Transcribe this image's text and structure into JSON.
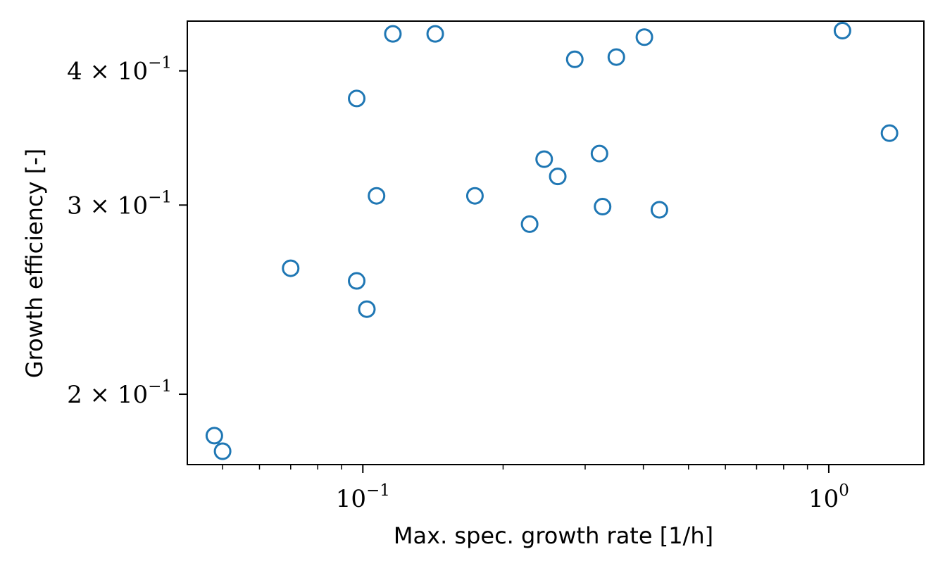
{
  "chart_data": {
    "type": "scatter",
    "title": "",
    "xlabel": "Max. spec. growth rate [1/h]",
    "ylabel": "Growth efficiency [-]",
    "x_scale": "log",
    "y_scale": "log",
    "xlim": [
      0.042,
      1.6
    ],
    "ylim": [
      0.172,
      0.445
    ],
    "x_ticks": [
      {
        "value": 0.1,
        "mantissa": "10",
        "exponent": "−1"
      },
      {
        "value": 1.0,
        "mantissa": "10",
        "exponent": "0"
      }
    ],
    "y_ticks": [
      {
        "value": 0.2,
        "mantissa": "2 × 10",
        "exponent": "−1"
      },
      {
        "value": 0.3,
        "mantissa": "3 × 10",
        "exponent": "−1"
      },
      {
        "value": 0.4,
        "mantissa": "4 × 10",
        "exponent": "−1"
      }
    ],
    "grid": false,
    "marker_color": "#1f77b4",
    "series": [
      {
        "x": [
          0.116,
          0.143,
          0.285,
          0.35,
          0.402,
          1.07,
          0.097,
          1.35,
          0.245,
          0.322,
          0.262,
          0.107,
          0.174,
          0.228,
          0.327,
          0.433,
          0.07,
          0.097,
          0.102,
          0.048,
          0.05
        ],
        "y": [
          0.433,
          0.433,
          0.41,
          0.412,
          0.43,
          0.436,
          0.377,
          0.35,
          0.331,
          0.335,
          0.319,
          0.306,
          0.306,
          0.288,
          0.299,
          0.297,
          0.262,
          0.255,
          0.24,
          0.183,
          0.177
        ]
      }
    ]
  }
}
